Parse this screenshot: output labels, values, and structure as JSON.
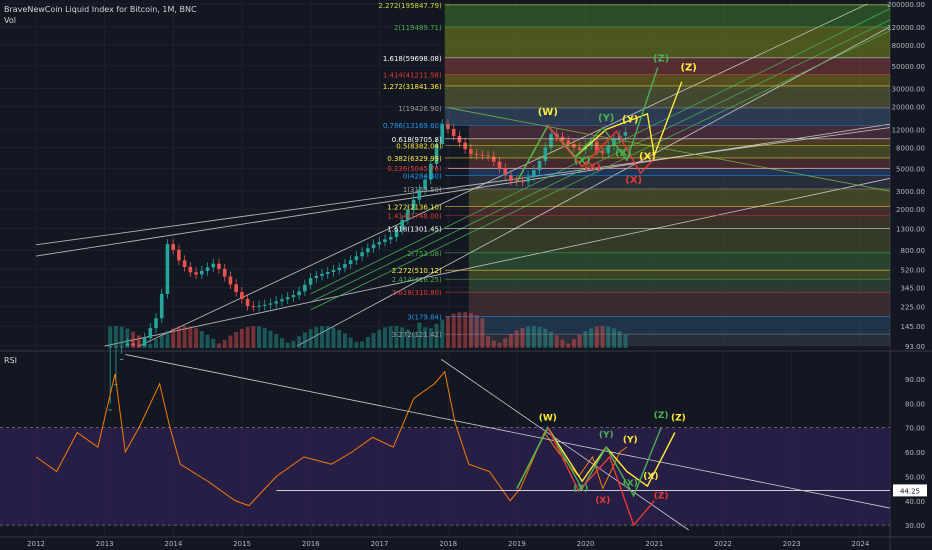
{
  "header": {
    "title": "BraveNewCoin Liquid Index for Bitcoin, 1M, BNC",
    "vol_label": "Vol"
  },
  "rsi_panel": {
    "label": "RSI",
    "last_value_badge": "44.25"
  },
  "colors": {
    "background": "#131722",
    "up": "#26a69a",
    "down": "#ef5350",
    "rsi_line": "#f57c00",
    "rsi_band": "#2a1f4a",
    "wave_white": "#e6e6e6",
    "wave_yellow": "#ffeb3b",
    "wave_green": "#4caf50",
    "wave_red": "#e53935"
  },
  "chart_data": [
    {
      "type": "candlestick",
      "title": "BraveNewCoin Liquid Index for Bitcoin, 1M, BNC",
      "y_scale": "log",
      "y_ticks": [
        "200000.00",
        "120000.00",
        "80000.00",
        "50000.00",
        "30000.00",
        "20000.00",
        "12000.00",
        "8000.00",
        "5000.00",
        "3000.00",
        "2000.00",
        "1300.00",
        "800.00",
        "520.00",
        "345.00",
        "225.00",
        "145.00",
        "93.00"
      ],
      "x_ticks": [
        "2012",
        "2013",
        "2014",
        "2015",
        "2016",
        "2017",
        "2018",
        "2019",
        "2020",
        "2021",
        "2022",
        "2023",
        "2024"
      ],
      "grid": true,
      "fib_levels": [
        {
          "label": "2.272(195847.79)",
          "color": "#cddc39"
        },
        {
          "label": "2(119489.71)",
          "color": "#4caf50"
        },
        {
          "label": "1.618(59698.08)",
          "color": "#ffffff"
        },
        {
          "label": "1.414(41211.58)",
          "color": "#e53935"
        },
        {
          "label": "1.272(31841.36)",
          "color": "#ffeb3b"
        },
        {
          "label": "1(19426.90)",
          "color": "#9e9e9e"
        },
        {
          "label": "0.786(13169.60)",
          "color": "#2196f3"
        },
        {
          "label": "0.618(9705.8)",
          "color": "#ffffff"
        },
        {
          "label": "0.5(8382.04)",
          "color": "#ffeb3b"
        },
        {
          "label": "0.382(6329.99)",
          "color": "#ffeb3b"
        },
        {
          "label": "0.236(5045.76)",
          "color": "#e53935"
        },
        {
          "label": "0(4284.40)",
          "color": "#2196f3"
        },
        {
          "label": "1(3153.50)",
          "color": "#9e9e9e"
        },
        {
          "label": "1.272(2136.10)",
          "color": "#ffeb3b"
        },
        {
          "label": "1.414(1748.00)",
          "color": "#e53935"
        },
        {
          "label": "1.618(1301.45)",
          "color": "#ffffff"
        },
        {
          "label": "2(753.08)",
          "color": "#4caf50"
        },
        {
          "label": "2.272(510.12)",
          "color": "#ffeb3b"
        },
        {
          "label": "2.414(416.25)",
          "color": "#4caf50"
        },
        {
          "label": "2.618(310.80)",
          "color": "#e53935"
        },
        {
          "label": "3(179.84)",
          "color": "#2196f3"
        },
        {
          "label": "3.272(121.42)",
          "color": "#9e9e9e"
        }
      ],
      "wave_labels": [
        {
          "text": "(W)",
          "color": "#ffeb3b"
        },
        {
          "text": "(X)",
          "color": "#4caf50"
        },
        {
          "text": "(X)",
          "color": "#e53935"
        },
        {
          "text": "(Y)",
          "color": "#4caf50"
        },
        {
          "text": "(Y)",
          "color": "#ffeb3b"
        },
        {
          "text": "(X)",
          "color": "#4caf50"
        },
        {
          "text": "(X)",
          "color": "#ffeb3b"
        },
        {
          "text": "(X)",
          "color": "#e53935"
        },
        {
          "text": "(Z)",
          "color": "#4caf50"
        },
        {
          "text": "(Z)",
          "color": "#ffeb3b"
        }
      ]
    },
    {
      "type": "line",
      "title": "RSI",
      "y_ticks": [
        "90.00",
        "80.00",
        "70.00",
        "60.00",
        "50.00",
        "40.00",
        "30.00"
      ],
      "ylim": [
        28,
        97
      ],
      "bands": [
        30,
        70
      ],
      "last_value": 44.25,
      "wave_labels": [
        {
          "text": "(W)",
          "color": "#ffeb3b"
        },
        {
          "text": "(X)",
          "color": "#4caf50"
        },
        {
          "text": "(X)",
          "color": "#e53935"
        },
        {
          "text": "(Y)",
          "color": "#4caf50"
        },
        {
          "text": "(Y)",
          "color": "#ffeb3b"
        },
        {
          "text": "(X)",
          "color": "#4caf50"
        },
        {
          "text": "(X)",
          "color": "#ffeb3b"
        },
        {
          "text": "(Z)",
          "color": "#e53935"
        },
        {
          "text": "(Z)",
          "color": "#4caf50"
        },
        {
          "text": "(Z)",
          "color": "#ffeb3b"
        }
      ]
    }
  ]
}
